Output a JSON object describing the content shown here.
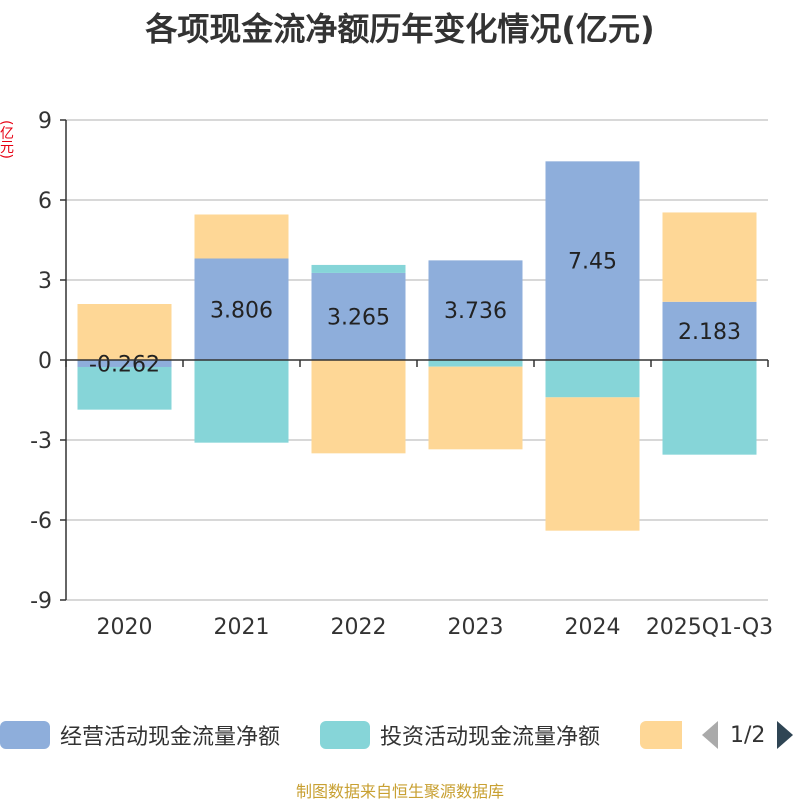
{
  "title": "各项现金流净额历年变化情况(亿元)",
  "unit_label": "(亿元)",
  "source": "制图数据来自恒生聚源数据库",
  "legend": {
    "pager_text": "1/2"
  },
  "chart_data": {
    "type": "bar",
    "stacked": true,
    "title": "各项现金流净额历年变化情况(亿元)",
    "ylabel": "(亿元)",
    "ylim": [
      -9,
      9
    ],
    "yticks": [
      9,
      6,
      3,
      0,
      -3,
      -6,
      -9
    ],
    "categories": [
      "2020",
      "2021",
      "2022",
      "2023",
      "2024",
      "2025Q1-Q3"
    ],
    "series": [
      {
        "name": "经营活动现金流量净额",
        "color": "#8eaedb",
        "values": [
          -0.262,
          3.806,
          3.265,
          3.736,
          7.45,
          2.183
        ],
        "labels": [
          "-0.262",
          "3.806",
          "3.265",
          "3.736",
          "7.45",
          "2.183"
        ]
      },
      {
        "name": "投资活动现金流量净额",
        "color": "#86d5d8",
        "values": [
          -1.6,
          -3.1,
          0.3,
          -0.25,
          -1.4,
          -3.55
        ]
      },
      {
        "name": "",
        "color": "#fed796",
        "values": [
          2.1,
          1.65,
          -3.5,
          -3.1,
          -5.0,
          3.35
        ]
      }
    ]
  }
}
